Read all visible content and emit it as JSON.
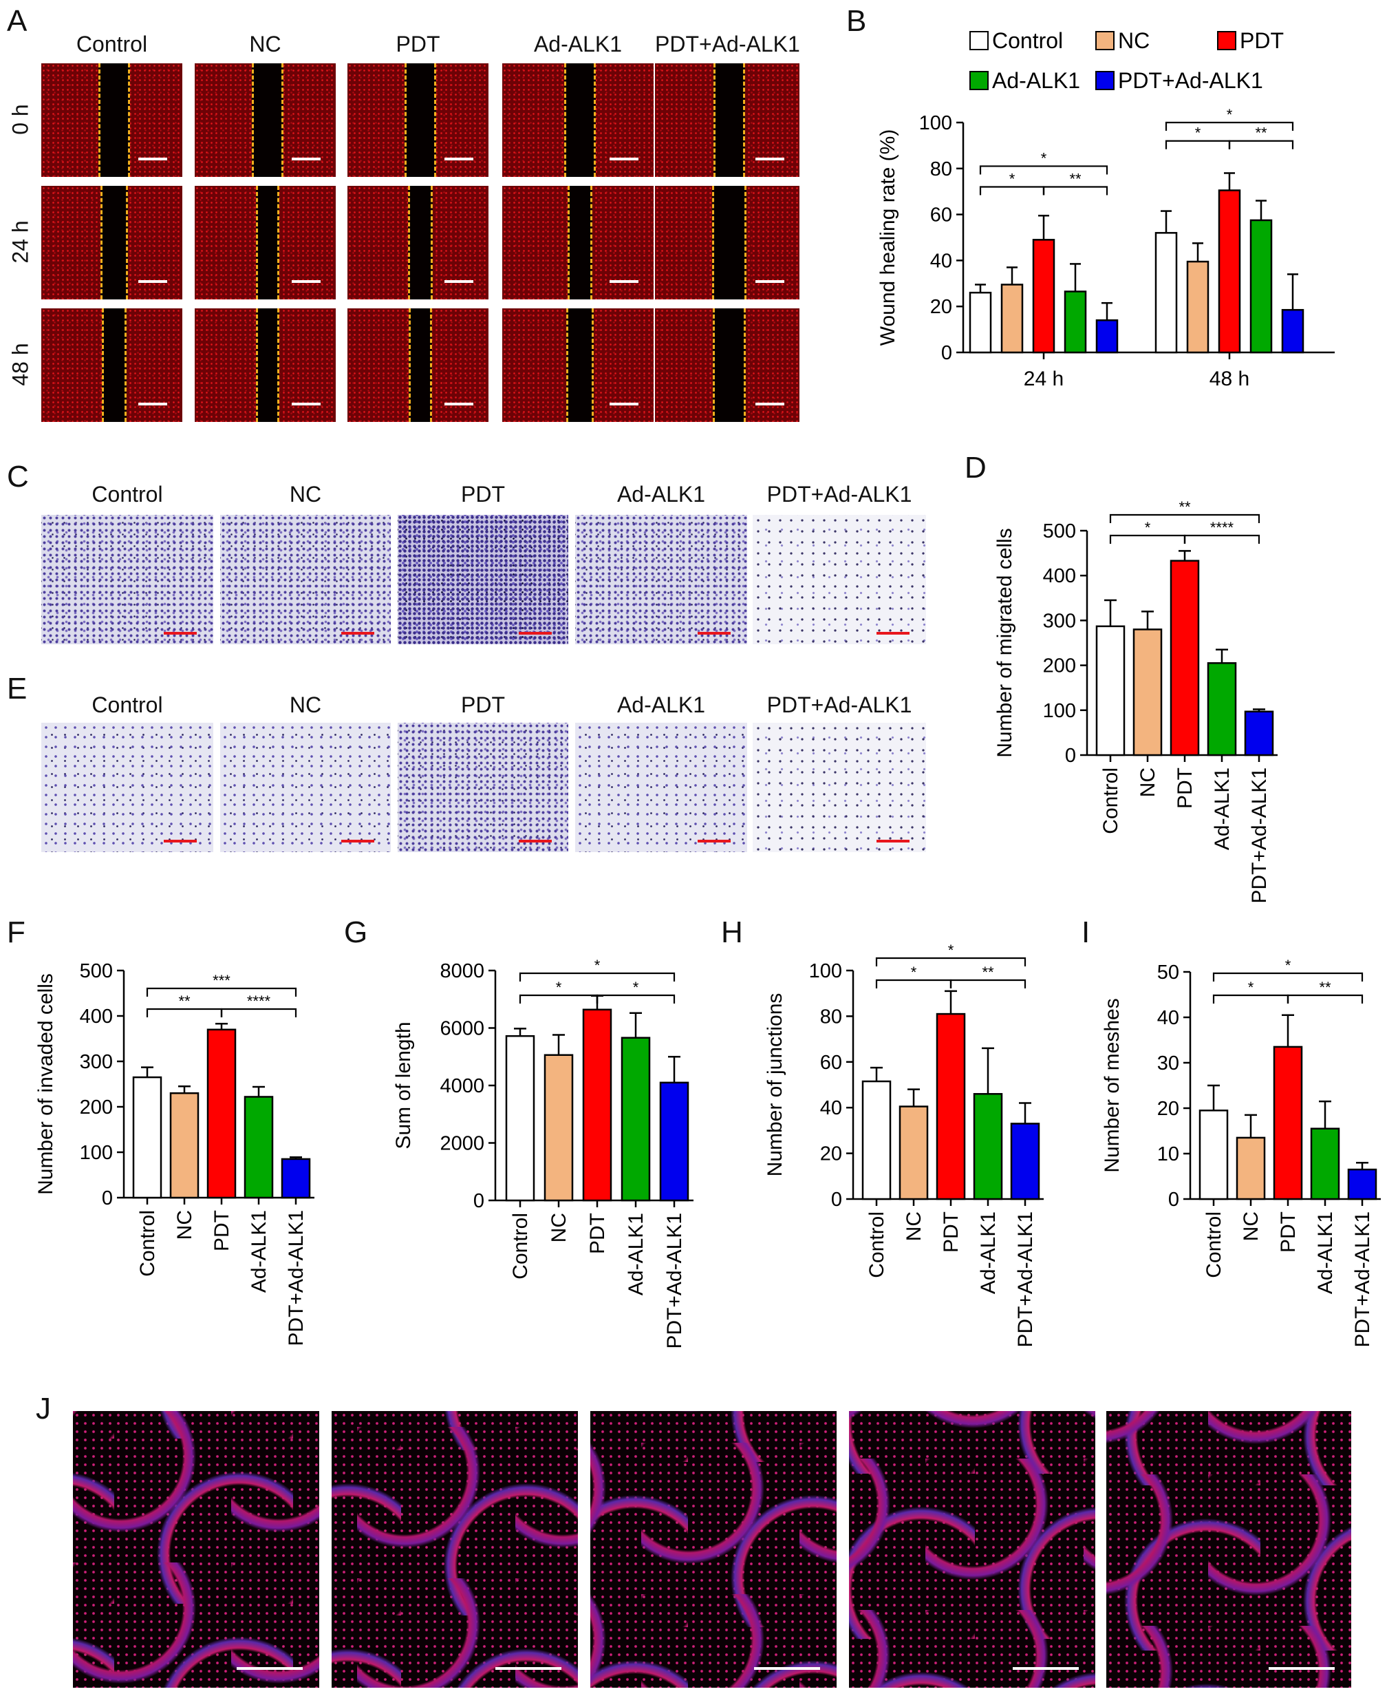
{
  "panels": {
    "A": "A",
    "B": "B",
    "C": "C",
    "D": "D",
    "E": "E",
    "F": "F",
    "G": "G",
    "H": "H",
    "I": "I",
    "J": "J"
  },
  "groups": [
    "Control",
    "NC",
    "PDT",
    "Ad-ALK1",
    "PDT+Ad-ALK1"
  ],
  "timepoints": [
    "0 h",
    "24 h",
    "48 h"
  ],
  "colors": {
    "Control": "#ffffff",
    "NC": "#f3b47f",
    "PDT": "#ff0000",
    "Ad-ALK1": "#00a800",
    "PDT+Ad-ALK1": "#0000ee"
  },
  "chart_data": [
    {
      "id": "B",
      "type": "bar",
      "categories": [
        "24 h",
        "48 h"
      ],
      "series": [
        {
          "name": "Control",
          "values": [
            26,
            52
          ],
          "errors": [
            3.5,
            9.5
          ]
        },
        {
          "name": "NC",
          "values": [
            29.5,
            39.5
          ],
          "errors": [
            7.5,
            8
          ]
        },
        {
          "name": "PDT",
          "values": [
            49,
            70.5
          ],
          "errors": [
            10.5,
            7.5
          ]
        },
        {
          "name": "Ad-ALK1",
          "values": [
            26.5,
            57.5
          ],
          "errors": [
            12,
            8.5
          ]
        },
        {
          "name": "PDT+Ad-ALK1",
          "values": [
            14,
            18.5
          ],
          "errors": [
            7.5,
            15.5
          ]
        }
      ],
      "ylabel": "Wound healing rate (%)",
      "ylim": [
        0,
        100
      ],
      "yticks": [
        0,
        20,
        40,
        60,
        80,
        100
      ],
      "legend": "top",
      "sig": [
        [
          {
            "a": 0,
            "b": 4,
            "t": "*",
            "lvl": 2
          },
          {
            "a": 0,
            "b": 2,
            "t": "*",
            "lvl": 1
          },
          {
            "a": 2,
            "b": 4,
            "t": "**",
            "lvl": 1
          }
        ],
        [
          {
            "a": 0,
            "b": 4,
            "t": "*",
            "lvl": 2
          },
          {
            "a": 0,
            "b": 2,
            "t": "*",
            "lvl": 1
          },
          {
            "a": 2,
            "b": 4,
            "t": "**",
            "lvl": 1
          }
        ]
      ]
    },
    {
      "id": "D",
      "type": "bar",
      "categories": [
        "Control",
        "NC",
        "PDT",
        "Ad-ALK1",
        "PDT+Ad-ALK1"
      ],
      "values": [
        287,
        280,
        433,
        205,
        97
      ],
      "errors": [
        58,
        40,
        22,
        30,
        5
      ],
      "ylabel": "Number of migrated cells",
      "ylim": [
        0,
        500
      ],
      "yticks": [
        0,
        100,
        200,
        300,
        400,
        500
      ],
      "sig": [
        {
          "a": 0,
          "b": 4,
          "t": "**",
          "lvl": 2
        },
        {
          "a": 0,
          "b": 2,
          "t": "*",
          "lvl": 1
        },
        {
          "a": 2,
          "b": 4,
          "t": "****",
          "lvl": 1
        }
      ]
    },
    {
      "id": "F",
      "type": "bar",
      "categories": [
        "Control",
        "NC",
        "PDT",
        "Ad-ALK1",
        "PDT+Ad-ALK1"
      ],
      "values": [
        265,
        230,
        370,
        222,
        85
      ],
      "errors": [
        22,
        15,
        13,
        22,
        4
      ],
      "ylabel": "Number of invaded cells",
      "ylim": [
        0,
        500
      ],
      "yticks": [
        0,
        100,
        200,
        300,
        400,
        500
      ],
      "sig": [
        {
          "a": 0,
          "b": 4,
          "t": "***",
          "lvl": 2
        },
        {
          "a": 0,
          "b": 2,
          "t": "**",
          "lvl": 1
        },
        {
          "a": 2,
          "b": 4,
          "t": "****",
          "lvl": 1
        }
      ]
    },
    {
      "id": "G",
      "type": "bar",
      "categories": [
        "Control",
        "NC",
        "PDT",
        "Ad-ALK1",
        "PDT+Ad-ALK1"
      ],
      "values": [
        5720,
        5060,
        6640,
        5660,
        4100
      ],
      "errors": [
        260,
        700,
        480,
        860,
        900
      ],
      "ylabel": "Sum of length",
      "ylim": [
        0,
        8000
      ],
      "yticks": [
        0,
        2000,
        4000,
        6000,
        8000
      ],
      "sig": [
        {
          "a": 0,
          "b": 4,
          "t": "*",
          "lvl": 2
        },
        {
          "a": 0,
          "b": 2,
          "t": "*",
          "lvl": 1
        },
        {
          "a": 2,
          "b": 4,
          "t": "*",
          "lvl": 1
        }
      ]
    },
    {
      "id": "H",
      "type": "bar",
      "categories": [
        "Control",
        "NC",
        "PDT",
        "Ad-ALK1",
        "PDT+Ad-ALK1"
      ],
      "values": [
        51.5,
        40.5,
        81,
        46,
        33
      ],
      "errors": [
        6,
        7.5,
        10,
        20,
        9
      ],
      "ylabel": "Number of junctions",
      "ylim": [
        0,
        100
      ],
      "yticks": [
        0,
        20,
        40,
        60,
        80,
        100
      ],
      "sig": [
        {
          "a": 0,
          "b": 4,
          "t": "*",
          "lvl": 2
        },
        {
          "a": 0,
          "b": 2,
          "t": "*",
          "lvl": 1
        },
        {
          "a": 2,
          "b": 4,
          "t": "**",
          "lvl": 1
        }
      ]
    },
    {
      "id": "I",
      "type": "bar",
      "categories": [
        "Control",
        "NC",
        "PDT",
        "Ad-ALK1",
        "PDT+Ad-ALK1"
      ],
      "values": [
        19.5,
        13.5,
        33.5,
        15.5,
        6.5
      ],
      "errors": [
        5.5,
        5,
        7,
        6,
        1.5
      ],
      "ylabel": "Number of meshes",
      "ylim": [
        0,
        50
      ],
      "yticks": [
        0,
        10,
        20,
        30,
        40,
        50
      ],
      "sig": [
        {
          "a": 0,
          "b": 4,
          "t": "*",
          "lvl": 2
        },
        {
          "a": 0,
          "b": 2,
          "t": "*",
          "lvl": 1
        },
        {
          "a": 2,
          "b": 4,
          "t": "**",
          "lvl": 1
        }
      ]
    }
  ]
}
